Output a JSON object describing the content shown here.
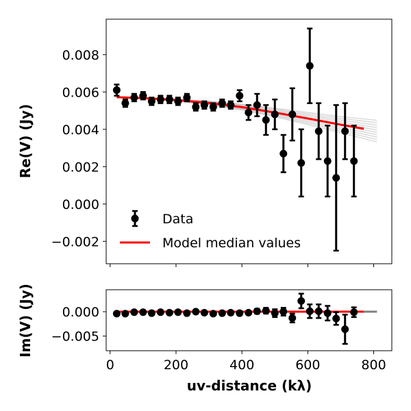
{
  "chart_data": [
    {
      "type": "scatter",
      "panel": "top",
      "ylabel": "Re(V) (Jy)",
      "xlim": [
        -12,
        855
      ],
      "ylim": [
        -0.0032,
        0.0099
      ],
      "yticks": [
        -0.002,
        0.0,
        0.002,
        0.004,
        0.006,
        0.008
      ],
      "ytick_labels": [
        "−0.002",
        "0.000",
        "0.002",
        "0.004",
        "0.006",
        "0.008"
      ],
      "xticks": [
        0,
        200,
        400,
        600,
        800
      ],
      "grid": false,
      "legend": {
        "placement": "lower-left",
        "entries": [
          {
            "label": "Data",
            "kind": "errorbar-marker",
            "color": "#000000"
          },
          {
            "label": "Model median values",
            "kind": "line",
            "color": "#ff0000"
          }
        ]
      },
      "series": [
        {
          "name": "Data",
          "kind": "errorbar",
          "color": "#000000",
          "x": [
            20,
            46,
            73,
            100,
            126,
            153,
            180,
            206,
            233,
            260,
            286,
            313,
            340,
            366,
            393,
            420,
            446,
            473,
            500,
            526,
            553,
            580,
            606,
            633,
            660,
            686,
            713,
            740
          ],
          "y": [
            0.0061,
            0.0054,
            0.0057,
            0.0058,
            0.0055,
            0.0056,
            0.0056,
            0.0055,
            0.0057,
            0.0052,
            0.0053,
            0.0052,
            0.0054,
            0.0053,
            0.0058,
            0.0049,
            0.0053,
            0.0045,
            0.0048,
            0.0027,
            0.0048,
            0.0022,
            0.0074,
            0.0039,
            0.0023,
            0.0014,
            0.0039,
            0.0023
          ],
          "yerr": [
            0.0003,
            0.0002,
            0.0002,
            0.0002,
            0.0002,
            0.0002,
            0.0002,
            0.0002,
            0.0002,
            0.0002,
            0.0002,
            0.0002,
            0.0002,
            0.0002,
            0.0003,
            0.0004,
            0.0006,
            0.0008,
            0.0008,
            0.001,
            0.0014,
            0.0018,
            0.002,
            0.0015,
            0.0019,
            0.0039,
            0.0015,
            0.0019
          ]
        },
        {
          "name": "Model median values",
          "kind": "line",
          "color": "#ff0000",
          "x": [
            20,
            100,
            200,
            300,
            400,
            500,
            600,
            700,
            770
          ],
          "y": [
            0.00572,
            0.00567,
            0.00557,
            0.00541,
            0.00519,
            0.0049,
            0.00458,
            0.00425,
            0.00403
          ]
        }
      ]
    },
    {
      "type": "scatter",
      "panel": "bottom",
      "xlabel": "uv-distance (kλ)",
      "ylabel": "Im(V) (Jy)",
      "xlim": [
        -12,
        855
      ],
      "ylim": [
        -0.008,
        0.0045
      ],
      "yticks": [
        -0.005,
        0.0
      ],
      "ytick_labels": [
        "−0.005",
        "0.000"
      ],
      "xticks": [
        0,
        200,
        400,
        600,
        800
      ],
      "xtick_labels": [
        "0",
        "200",
        "400",
        "600",
        "800"
      ],
      "grid": false,
      "series": [
        {
          "kind": "errorbar",
          "color": "#000000",
          "x": [
            20,
            46,
            73,
            100,
            126,
            153,
            180,
            206,
            233,
            260,
            286,
            313,
            340,
            366,
            393,
            420,
            446,
            473,
            500,
            526,
            553,
            580,
            606,
            633,
            660,
            686,
            713,
            740
          ],
          "y": [
            -0.0004,
            -0.0004,
            -0.0001,
            -0.0001,
            -0.0003,
            -0.0001,
            -0.0002,
            -0.0001,
            -0.0003,
            0.0,
            -0.0002,
            -0.0004,
            -0.0003,
            -0.0002,
            -0.0003,
            -0.0002,
            0.0001,
            0.0002,
            -0.0003,
            0.0,
            -0.0013,
            0.0022,
            0.0001,
            0.0001,
            -0.0003,
            -0.0014,
            -0.0036,
            -0.0001
          ],
          "yerr": [
            0.0003,
            0.0002,
            0.0002,
            0.0002,
            0.0002,
            0.0002,
            0.0002,
            0.0002,
            0.0002,
            0.0002,
            0.0002,
            0.0002,
            0.0002,
            0.0002,
            0.0002,
            0.0003,
            0.0005,
            0.0006,
            0.0008,
            0.0008,
            0.0009,
            0.0015,
            0.0014,
            0.0014,
            0.0015,
            0.0013,
            0.003,
            0.001
          ]
        },
        {
          "kind": "line",
          "color": "#ff0000",
          "x": [
            20,
            770
          ],
          "y": [
            0.0,
            0.0
          ]
        },
        {
          "kind": "line",
          "color": "#808080",
          "x": [
            770,
            810
          ],
          "y": [
            0.0,
            0.0
          ]
        }
      ]
    }
  ]
}
